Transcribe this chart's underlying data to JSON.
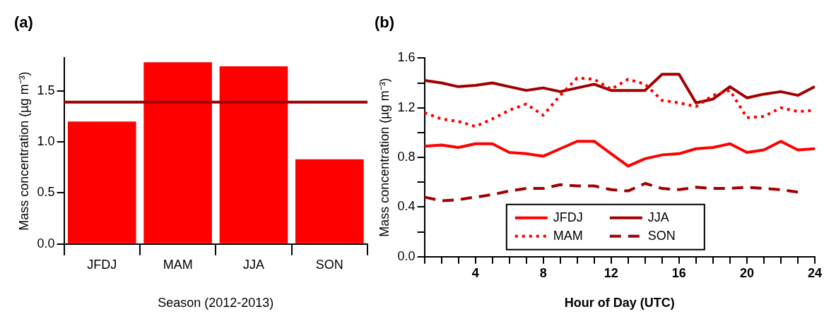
{
  "chart_data": [
    {
      "type": "bar",
      "title": "(a)",
      "xlabel": "Season (2012-2013)",
      "ylabel": "Mass concentration (µg m⁻³)",
      "categories": [
        "JFDJ",
        "MAM",
        "JJA",
        "SON"
      ],
      "values": [
        1.2,
        1.78,
        1.74,
        0.83
      ],
      "color": "#ff0000",
      "ylim": [
        0,
        1.82
      ],
      "yticks": [
        {
          "value": 0,
          "label": "0.0"
        },
        {
          "value": 0.5,
          "label": "0.5"
        },
        {
          "value": 1,
          "label": "1.0"
        },
        {
          "value": 1.5,
          "label": "1.5"
        }
      ],
      "ref_lines": [
        {
          "axis": "y",
          "value": 1.39,
          "color": "#a00000"
        }
      ],
      "grid": false,
      "legend": false
    },
    {
      "type": "line",
      "title": "(b)",
      "xlabel": "Hour of Day (UTC)",
      "ylabel": "Mass concentration (µg m⁻³)",
      "x": [
        1,
        2,
        3,
        4,
        5,
        6,
        7,
        8,
        9,
        10,
        11,
        12,
        13,
        14,
        15,
        16,
        17,
        18,
        19,
        20,
        21,
        22,
        23,
        24
      ],
      "series": [
        {
          "name": "JFDJ",
          "color": "#ff0000",
          "line_style": "solid",
          "values": [
            0.89,
            0.9,
            0.88,
            0.91,
            0.91,
            0.84,
            0.83,
            0.81,
            0.87,
            0.93,
            0.93,
            0.83,
            0.73,
            0.79,
            0.82,
            0.83,
            0.87,
            0.88,
            0.91,
            0.84,
            0.86,
            0.93,
            0.86,
            0.87
          ]
        },
        {
          "name": "MAM",
          "color": "#ff0000",
          "line_style": "dotted",
          "values": [
            1.16,
            1.11,
            1.09,
            1.05,
            1.11,
            1.18,
            1.23,
            1.14,
            1.3,
            1.44,
            1.43,
            1.35,
            1.43,
            1.39,
            1.26,
            1.24,
            1.21,
            1.3,
            1.34,
            1.12,
            1.13,
            1.2,
            1.17,
            1.18
          ]
        },
        {
          "name": "JJA",
          "color": "#a00000",
          "line_style": "solid",
          "values": [
            1.42,
            1.4,
            1.37,
            1.38,
            1.4,
            1.37,
            1.34,
            1.36,
            1.33,
            1.36,
            1.39,
            1.34,
            1.34,
            1.34,
            1.47,
            1.47,
            1.24,
            1.27,
            1.37,
            1.28,
            1.31,
            1.33,
            1.3,
            1.37
          ]
        },
        {
          "name": "SON",
          "color": "#a00000",
          "line_style": "dashed",
          "values": [
            0.48,
            0.45,
            0.46,
            0.48,
            0.5,
            0.53,
            0.55,
            0.55,
            0.58,
            0.57,
            0.57,
            0.54,
            0.53,
            0.59,
            0.55,
            0.54,
            0.56,
            0.55,
            0.55,
            0.56,
            0.55,
            0.54,
            0.52,
            null
          ]
        }
      ],
      "xlim": [
        1,
        24
      ],
      "xticks": [
        {
          "value": 1,
          "label": null
        },
        {
          "value": 2,
          "label": null
        },
        {
          "value": 3,
          "label": null
        },
        4,
        {
          "value": 5,
          "label": null
        },
        {
          "value": 6,
          "label": null
        },
        {
          "value": 7,
          "label": null
        },
        8,
        {
          "value": 9,
          "label": null
        },
        {
          "value": 10,
          "label": null
        },
        {
          "value": 11,
          "label": null
        },
        12,
        {
          "value": 13,
          "label": null
        },
        {
          "value": 14,
          "label": null
        },
        {
          "value": 15,
          "label": null
        },
        16,
        {
          "value": 17,
          "label": null
        },
        {
          "value": 18,
          "label": null
        },
        {
          "value": 19,
          "label": null
        },
        20,
        {
          "value": 21,
          "label": null
        },
        {
          "value": 22,
          "label": null
        },
        {
          "value": 23,
          "label": null
        },
        24
      ],
      "ylim": [
        0,
        1.6
      ],
      "yticks": [
        {
          "value": 0,
          "label": "0.0"
        },
        {
          "value": 0.2,
          "label": null
        },
        {
          "value": 0.4,
          "label": "0.4"
        },
        {
          "value": 0.6,
          "label": null
        },
        {
          "value": 0.8,
          "label": "0.8"
        },
        {
          "value": 1,
          "label": null
        },
        {
          "value": 1.2,
          "label": "1.2"
        },
        {
          "value": 1.4,
          "label": null
        },
        {
          "value": 1.6,
          "label": "1.6"
        }
      ],
      "marker": "none",
      "grid": false,
      "legend": "bottom"
    }
  ]
}
